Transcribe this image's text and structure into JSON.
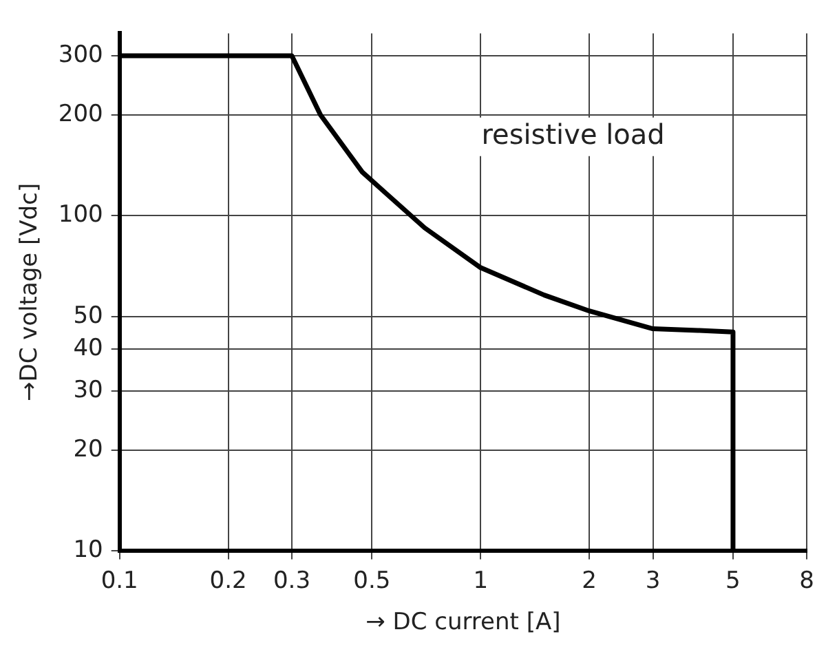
{
  "chart_data": {
    "type": "line",
    "xlabel": "→ DC current [A]",
    "ylabel": "→DC voltage [Vdc]",
    "x": [
      0.1,
      0.3,
      0.36,
      0.47,
      0.55,
      0.7,
      1,
      1.5,
      2,
      3,
      4,
      5,
      5
    ],
    "series": [
      {
        "color": "#000000",
        "values": [
          300,
          300,
          200,
          135,
          116,
          92,
          70,
          58,
          52,
          46,
          45.5,
          45,
          10
        ]
      }
    ],
    "log": "xy",
    "xlim": [
      0.1,
      8
    ],
    "ylim": [
      10,
      350
    ],
    "xticks": [
      0.1,
      0.2,
      0.3,
      0.5,
      1,
      2,
      3,
      5,
      8
    ],
    "yticks": [
      10,
      20,
      30,
      40,
      50,
      100,
      200,
      300
    ],
    "grid": true,
    "legend": false,
    "marker": "none",
    "line_style": "solid",
    "annotations": [
      "resistive load"
    ]
  }
}
